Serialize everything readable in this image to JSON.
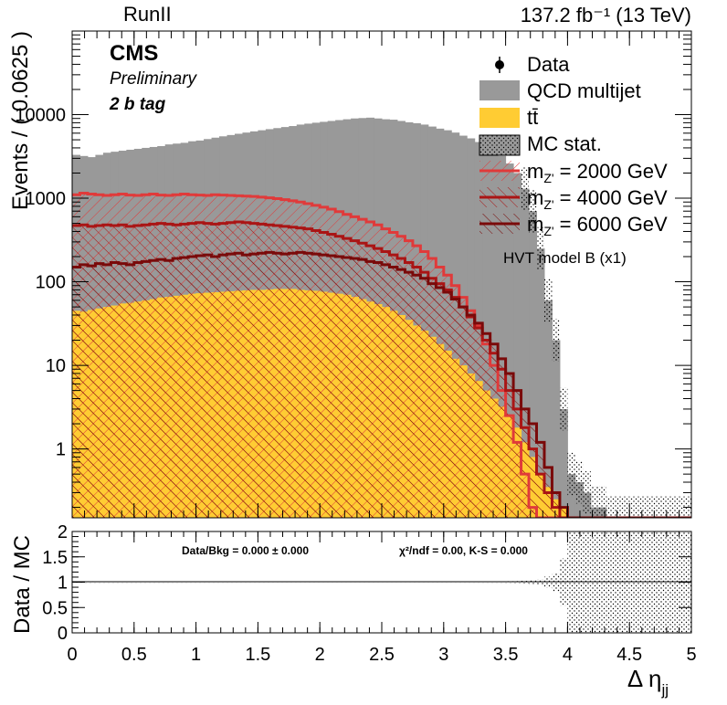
{
  "header": {
    "run_label": "RunII",
    "lumi_label": "137.2 fb⁻¹  (13 TeV)",
    "cms_label": "CMS",
    "preliminary_label": "Preliminary",
    "category_label": "2 b tag"
  },
  "legend": {
    "entries": [
      {
        "key": "data",
        "label": "Data"
      },
      {
        "key": "qcd",
        "label": "QCD multijet"
      },
      {
        "key": "ttbar",
        "label": "tt̄"
      },
      {
        "key": "mcstat",
        "label": "MC stat."
      },
      {
        "key": "sig2000",
        "label": "m"
      },
      {
        "key": "sig4000",
        "label": "m"
      },
      {
        "key": "sig6000",
        "label": "m"
      }
    ],
    "signal_mass_labels": [
      {
        "sub": "Z'",
        "text": " = 2000 GeV"
      },
      {
        "sub": "Z'",
        "text": " = 4000 GeV"
      },
      {
        "sub": "Z'",
        "text": " = 6000 GeV"
      }
    ],
    "model_note": "HVT model B (x1)"
  },
  "ratio_text": {
    "data_bkg": "Data/Bkg = 0.000 ± 0.000",
    "chi2": "χ²/ndf = 0.00,   K-S = 0.000"
  },
  "colors": {
    "qcd": "#999999",
    "ttbar": "#ffcc33",
    "sig2000": "#e03a3a",
    "sig4000": "#aa1515",
    "sig6000": "#7a0a0a"
  },
  "chart_data": {
    "type": "bar",
    "stacked": true,
    "log_y": true,
    "xlabel": "Δ η",
    "xlabel_sub": "jj",
    "ylabel": "Events / ( 0.0625 )",
    "xlim": [
      0,
      5
    ],
    "ylim": [
      0.15,
      100000
    ],
    "x_ticks": [
      0,
      0.5,
      1,
      1.5,
      2,
      2.5,
      3,
      3.5,
      4,
      4.5,
      5
    ],
    "x_tick_labels": [
      "0",
      "0.5",
      "1",
      "1.5",
      "2",
      "2.5",
      "3",
      "3.5",
      "4",
      "4.5",
      "5"
    ],
    "y_ticks": [
      1,
      10,
      100,
      1000,
      10000
    ],
    "y_tick_labels": [
      "1",
      "10",
      "100",
      "1000",
      "10000"
    ],
    "bin_edges_start": 0,
    "bin_width": 0.0625,
    "qcd_total": [
      3300,
      3200,
      3100,
      3300,
      3500,
      3600,
      3700,
      3800,
      3900,
      4000,
      4100,
      4200,
      4400,
      4500,
      4600,
      4800,
      4900,
      5100,
      5300,
      5500,
      5700,
      5900,
      6100,
      6300,
      6500,
      6700,
      6900,
      7100,
      7300,
      7600,
      7800,
      8000,
      8200,
      8400,
      8600,
      8800,
      9000,
      9100,
      9200,
      9000,
      8800,
      8700,
      8400,
      8100,
      7900,
      7600,
      7200,
      6800,
      6500,
      6100,
      5600,
      5200,
      4700,
      4200,
      3700,
      3200,
      2600,
      2000,
      1300,
      700,
      250,
      60,
      20,
      3,
      0.5,
      0.4,
      0.3,
      0.2,
      0.2,
      0.15,
      0.15,
      0.15,
      0.15,
      0.15,
      0.15,
      0.15,
      0.15,
      0.15,
      0.15,
      0.15
    ],
    "ttbar": [
      45,
      44,
      46,
      48,
      50,
      52,
      55,
      56,
      58,
      60,
      62,
      65,
      66,
      68,
      70,
      72,
      73,
      74,
      75,
      76,
      77,
      78,
      79,
      80,
      80,
      81,
      82,
      82,
      82,
      80,
      79,
      78,
      76,
      74,
      72,
      70,
      66,
      62,
      58,
      54,
      50,
      45,
      40,
      35,
      30,
      26,
      22,
      18,
      15,
      12,
      10,
      8,
      6.5,
      5,
      4,
      3.2,
      2.5,
      1.8,
      1.2,
      0.8,
      0.5,
      0.35,
      0.25,
      0.2,
      0.15,
      0.15,
      0.15,
      0.15,
      0.15,
      0.15,
      0.15,
      0.15,
      0.15,
      0.15,
      0.15,
      0.15,
      0.15,
      0.15,
      0.15,
      0.15
    ],
    "series": [
      {
        "name": "m_Z' = 2000 GeV",
        "key": "sig2000",
        "values": [
          1100,
          1150,
          1120,
          1100,
          1080,
          1100,
          1120,
          1090,
          1080,
          1100,
          1120,
          1090,
          1080,
          1100,
          1120,
          1100,
          1090,
          1080,
          1100,
          1090,
          1080,
          1070,
          1060,
          1050,
          1030,
          1010,
          990,
          960,
          930,
          900,
          860,
          820,
          780,
          740,
          690,
          640,
          600,
          560,
          520,
          480,
          430,
          390,
          350,
          310,
          270,
          230,
          190,
          150,
          120,
          90,
          65,
          45,
          30,
          18,
          10,
          5,
          2.5,
          1.2,
          0.5,
          0.2,
          0.15,
          0.15,
          0.15,
          0.15,
          0.15,
          0.15,
          0.15,
          0.15,
          0.15,
          0.15,
          0.15,
          0.15,
          0.15,
          0.15,
          0.15,
          0.15,
          0.15,
          0.15,
          0.15,
          0.15
        ]
      },
      {
        "name": "m_Z' = 4000 GeV",
        "key": "sig4000",
        "values": [
          470,
          480,
          460,
          470,
          480,
          470,
          480,
          460,
          470,
          480,
          490,
          500,
          490,
          480,
          490,
          500,
          510,
          500,
          490,
          500,
          510,
          520,
          510,
          500,
          490,
          480,
          470,
          460,
          450,
          440,
          430,
          410,
          390,
          370,
          350,
          330,
          310,
          290,
          270,
          250,
          230,
          210,
          190,
          170,
          150,
          130,
          110,
          95,
          80,
          65,
          50,
          38,
          28,
          20,
          14,
          9,
          5,
          3,
          1.8,
          1,
          0.5,
          0.3,
          0.2,
          0.15,
          0.15,
          0.15,
          0.15,
          0.15,
          0.15,
          0.15,
          0.15,
          0.15,
          0.15,
          0.15,
          0.15,
          0.15,
          0.15,
          0.15,
          0.15,
          0.15
        ]
      },
      {
        "name": "m_Z' = 6000 GeV",
        "key": "sig6000",
        "values": [
          150,
          160,
          155,
          165,
          160,
          170,
          165,
          160,
          170,
          175,
          180,
          185,
          180,
          190,
          195,
          200,
          205,
          210,
          200,
          210,
          215,
          220,
          210,
          215,
          220,
          225,
          220,
          215,
          220,
          225,
          220,
          215,
          210,
          205,
          200,
          195,
          190,
          185,
          175,
          170,
          160,
          150,
          140,
          130,
          120,
          110,
          95,
          85,
          75,
          62,
          50,
          40,
          32,
          24,
          18,
          12,
          8,
          5,
          3,
          2,
          1.2,
          0.6,
          0.3,
          0.2,
          0.15,
          0.15,
          0.15,
          0.15,
          0.15,
          0.15,
          0.15,
          0.15,
          0.15,
          0.15,
          0.15,
          0.15,
          0.15,
          0.15,
          0.15,
          0.15
        ]
      }
    ],
    "ratio": {
      "ylabel": "Data / MC",
      "ylim": [
        0,
        2
      ],
      "y_ticks": [
        0,
        0.5,
        1,
        1.5,
        2
      ],
      "y_tick_labels": [
        "0",
        "0.5",
        "1",
        "1.5",
        "2"
      ]
    }
  }
}
